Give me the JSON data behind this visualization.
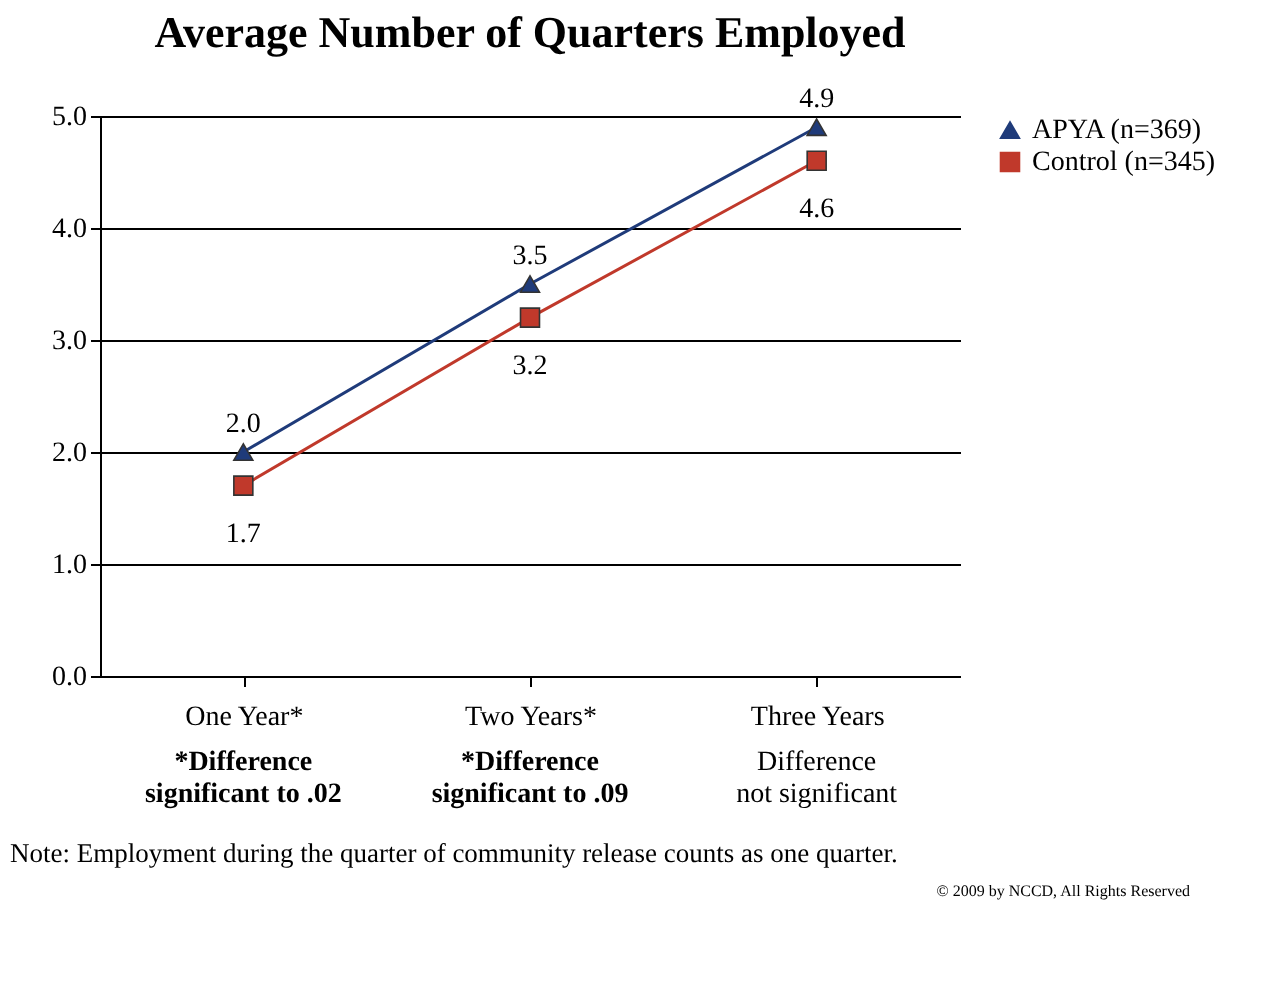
{
  "chart_data": {
    "type": "line",
    "title": "Average Number of Quarters Employed",
    "categories": [
      "One Year*",
      "Two Years*",
      "Three Years"
    ],
    "series": [
      {
        "name": "APYA (n=369)",
        "color": "#1f3b7a",
        "marker": "triangle",
        "values": [
          2.0,
          3.5,
          4.9
        ],
        "value_labels": [
          "2.0",
          "3.5",
          "4.9"
        ]
      },
      {
        "name": "Control (n=345)",
        "color": "#c0392b",
        "marker": "square",
        "values": [
          1.7,
          3.2,
          4.6
        ],
        "value_labels": [
          "1.7",
          "3.2",
          "4.6"
        ]
      }
    ],
    "ylim": [
      0,
      5
    ],
    "yticks": [
      {
        "value": 0,
        "label": "0.0"
      },
      {
        "value": 1,
        "label": "1.0"
      },
      {
        "value": 2,
        "label": "2.0"
      },
      {
        "value": 3,
        "label": "3.0"
      },
      {
        "value": 4,
        "label": "4.0"
      },
      {
        "value": 5,
        "label": "5.0"
      }
    ],
    "grid": "y",
    "legend": "right",
    "annotations": [
      "*Difference\nsignificant to .02",
      "*Difference\nsignificant to .09",
      "Difference\nnot significant",
      "Note:  Employment during the quarter of community release counts as one quarter.",
      "© 2009 by NCCD, All Rights Reserved"
    ]
  }
}
